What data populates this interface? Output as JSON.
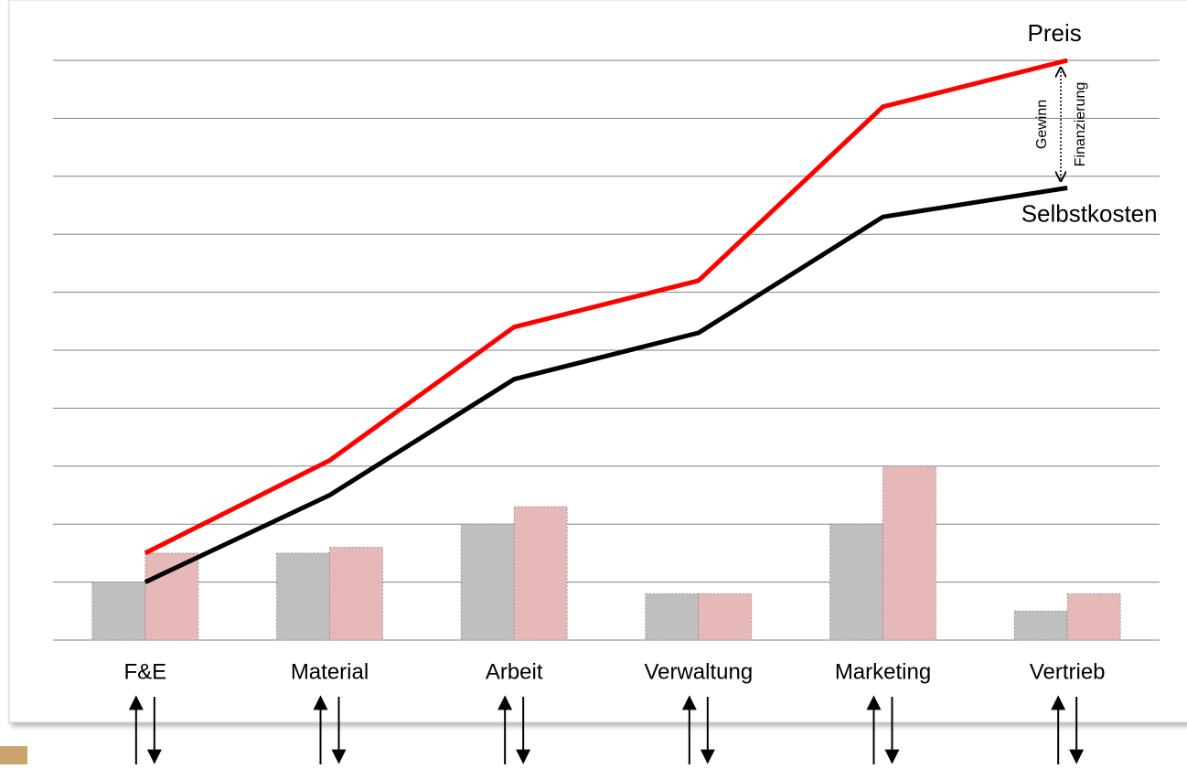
{
  "chart_data": {
    "type": "bar",
    "categories": [
      "F&E",
      "Material",
      "Arbeit",
      "Verwaltung",
      "Marketing",
      "Vertrieb"
    ],
    "series": [
      {
        "color": "#bfbfbf",
        "values": [
          1,
          1.5,
          2,
          0.8,
          2,
          0.5
        ]
      },
      {
        "color": "#e6b8b7",
        "values": [
          1.5,
          1.6,
          2.3,
          0.8,
          3,
          0.8
        ]
      },
      {
        "type": "line",
        "name": "Preis",
        "color": "#ff0000",
        "values": [
          1.5,
          3.1,
          5.4,
          6.2,
          9.2,
          10
        ]
      },
      {
        "type": "line",
        "name": "Selbstkosten",
        "color": "#000000",
        "values": [
          1,
          2.5,
          4.5,
          5.3,
          7.3,
          7.8
        ]
      }
    ],
    "annotations": [
      "Gewinn",
      "Finanzierung"
    ],
    "ylim": [
      0,
      10
    ],
    "yticks": [
      0,
      1,
      2,
      3,
      4,
      5,
      6,
      7,
      8,
      9,
      10
    ],
    "grid": true
  }
}
